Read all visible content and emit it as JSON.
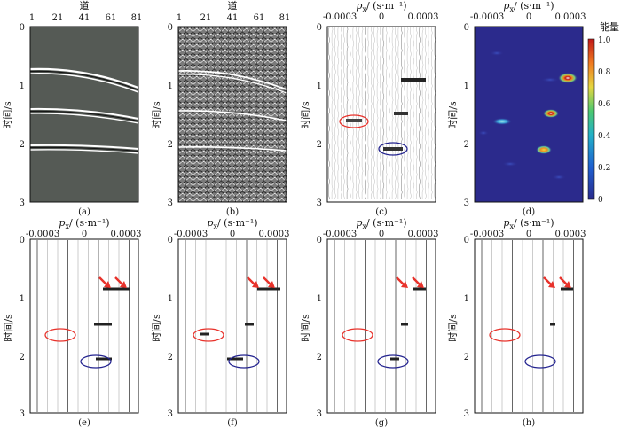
{
  "figure": {
    "panels": [
      {
        "id": "a",
        "caption": "(a)",
        "top_axis_title": "道",
        "top_axis_ticks": [
          "1",
          "21",
          "41",
          "61",
          "81"
        ],
        "ylabel": "时间/s",
        "y_ticks": [
          "0",
          "1",
          "2",
          "3"
        ],
        "kind": "seismic-synthetic"
      },
      {
        "id": "b",
        "caption": "(b)",
        "top_axis_title": "道",
        "top_axis_ticks": [
          "1",
          "21",
          "41",
          "61",
          "81"
        ],
        "ylabel": "时间/s",
        "y_ticks": [
          "0",
          "1",
          "2",
          "3"
        ],
        "kind": "seismic-noisy"
      },
      {
        "id": "c",
        "caption": "(c)",
        "top_axis_title_main": "p",
        "top_axis_title_sub": "x",
        "top_axis_title_unit": "/ (s·m⁻¹)",
        "top_axis_ticks": [
          "-0.0003",
          "0",
          "0.0003"
        ],
        "ylabel": "时间/s",
        "y_ticks": [
          "0",
          "1",
          "2",
          "3"
        ],
        "kind": "tau-p-wiggle"
      },
      {
        "id": "d",
        "caption": "(d)",
        "top_axis_title_main": "p",
        "top_axis_title_sub": "x",
        "top_axis_title_unit": "/ (s·m⁻¹)",
        "top_axis_ticks": [
          "-0.0003",
          "0",
          "0.0003"
        ],
        "ylabel": "时间/s",
        "y_ticks": [
          "0",
          "1",
          "2",
          "3"
        ],
        "kind": "energy-map"
      },
      {
        "id": "e",
        "caption": "(e)",
        "top_axis_title_main": "p",
        "top_axis_title_sub": "x",
        "top_axis_title_unit": "/ (s·m⁻¹)",
        "top_axis_ticks": [
          "-0.0003",
          "0",
          "0.0003"
        ],
        "ylabel": "时间/s",
        "y_ticks": [
          "0",
          "1",
          "2",
          "3"
        ],
        "kind": "tau-p-result"
      },
      {
        "id": "f",
        "caption": "(f)",
        "top_axis_title_main": "p",
        "top_axis_title_sub": "x",
        "top_axis_title_unit": "/ (s·m⁻¹)",
        "top_axis_ticks": [
          "-0.0003",
          "0",
          "0.0003"
        ],
        "ylabel": "时间/s",
        "y_ticks": [
          "0",
          "1",
          "2",
          "3"
        ],
        "kind": "tau-p-result"
      },
      {
        "id": "g",
        "caption": "(g)",
        "top_axis_title_main": "p",
        "top_axis_title_sub": "x",
        "top_axis_title_unit": "/ (s·m⁻¹)",
        "top_axis_ticks": [
          "-0.0003",
          "0",
          "0.0003"
        ],
        "ylabel": "时间/s",
        "y_ticks": [
          "0",
          "1",
          "2",
          "3"
        ],
        "kind": "tau-p-result"
      },
      {
        "id": "h",
        "caption": "(h)",
        "top_axis_title_main": "p",
        "top_axis_title_sub": "x",
        "top_axis_title_unit": "/ (s·m⁻¹)",
        "top_axis_ticks": [
          "-0.0003",
          "0",
          "0.0003"
        ],
        "ylabel": "时间/s",
        "y_ticks": [
          "0",
          "1",
          "2",
          "3"
        ],
        "kind": "tau-p-result"
      }
    ],
    "colorbar": {
      "title": "能量",
      "ticks": [
        "1.0",
        "0.8",
        "0.6",
        "0.4",
        "0.2",
        "0"
      ]
    },
    "colors": {
      "red_marker": "#e8322b",
      "blue_marker": "#23238f",
      "arrow": "#e8322b",
      "map_background": "#2b2a8c"
    }
  }
}
